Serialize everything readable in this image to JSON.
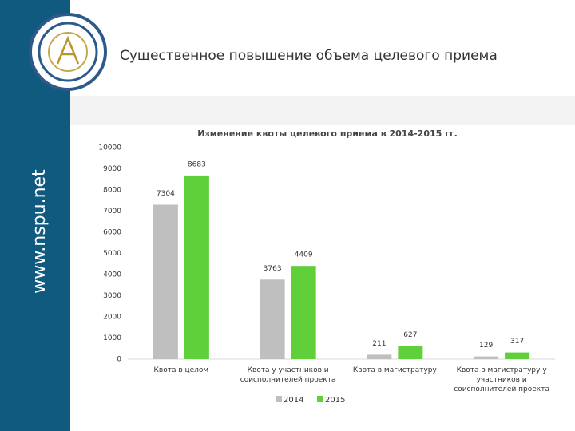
{
  "slide": {
    "title": "Существенное повышение объема целевого приема",
    "sidebar": "www.nspu.net"
  },
  "chart_data": {
    "type": "bar",
    "title": "Изменение квоты целевого приема в 2014-2015 гг.",
    "categories": [
      "Квота в целом",
      "Квота у участников и соисполнителей проекта",
      "Квота в магистратуру",
      "Квота в магистратуру у участников и соисполнителей проекта"
    ],
    "series": [
      {
        "name": "2014",
        "color": "#bfbfbf",
        "values": [
          7304,
          3763,
          211,
          129
        ]
      },
      {
        "name": "2015",
        "color": "#5fcf3a",
        "values": [
          8683,
          4409,
          627,
          317
        ]
      }
    ],
    "ylim": [
      0,
      10000
    ],
    "yticks": [
      0,
      1000,
      2000,
      3000,
      4000,
      5000,
      6000,
      7000,
      8000,
      9000,
      10000
    ],
    "grid": false,
    "legend": "bottom"
  }
}
